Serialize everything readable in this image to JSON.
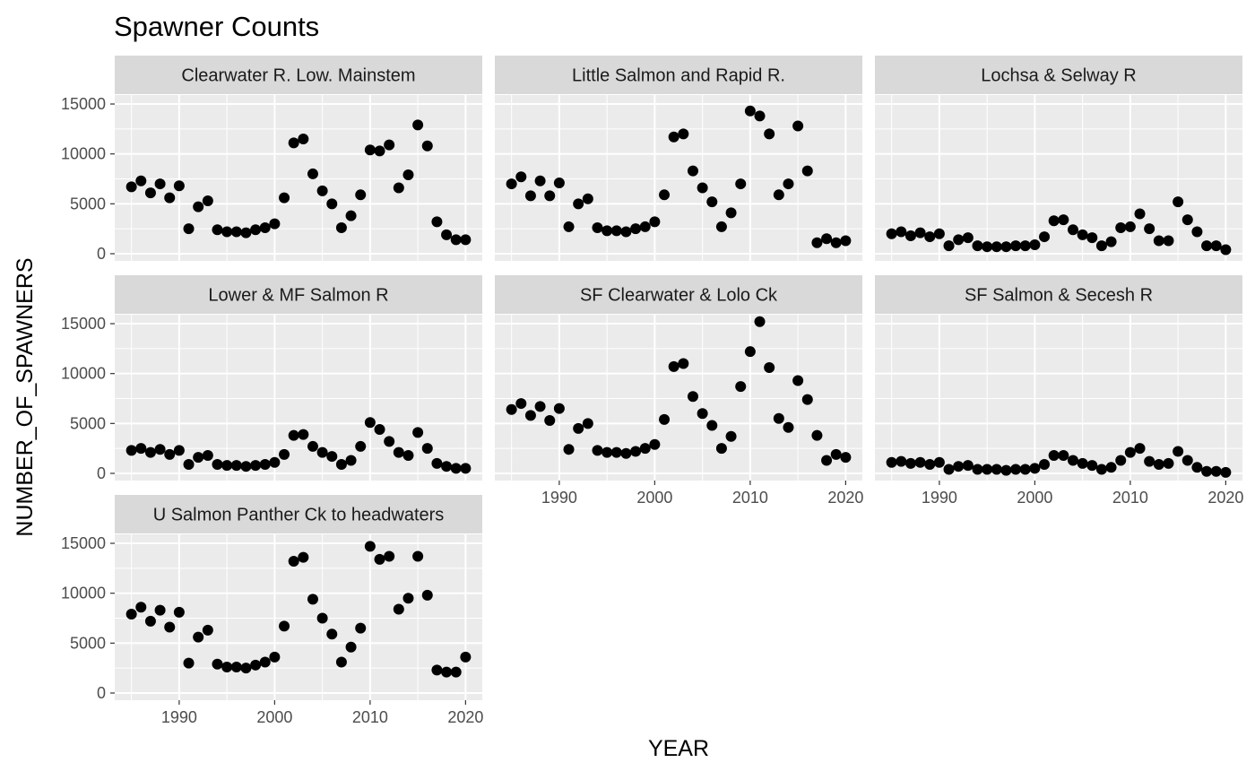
{
  "chart_data": {
    "type": "scatter",
    "title": "Spawner Counts",
    "xlabel": "YEAR",
    "ylabel": "NUMBER_OF_SPAWNERS",
    "xlim": [
      1983.25,
      2021.75
    ],
    "ylim": [
      -720,
      15900
    ],
    "x_ticks": [
      1990,
      2000,
      2010,
      2020
    ],
    "y_ticks": [
      0,
      5000,
      10000,
      15000
    ],
    "grid": true,
    "facets": [
      {
        "name": "Clearwater R. Low. Mainstem",
        "x": [
          1985,
          1986,
          1987,
          1988,
          1989,
          1990,
          1991,
          1992,
          1993,
          1994,
          1995,
          1996,
          1997,
          1998,
          1999,
          2000,
          2001,
          2002,
          2003,
          2004,
          2005,
          2006,
          2007,
          2008,
          2009,
          2010,
          2011,
          2012,
          2013,
          2014,
          2015,
          2016,
          2017,
          2018,
          2019,
          2020
        ],
        "y": [
          6700,
          7300,
          6100,
          7000,
          5600,
          6800,
          2500,
          4700,
          5300,
          2400,
          2200,
          2200,
          2100,
          2400,
          2600,
          3000,
          5600,
          11100,
          11500,
          8000,
          6300,
          5000,
          2600,
          3800,
          5900,
          10400,
          10300,
          10900,
          6600,
          7900,
          12900,
          10800,
          3200,
          1900,
          1400,
          1400
        ]
      },
      {
        "name": "Little Salmon and Rapid R.",
        "x": [
          1985,
          1986,
          1987,
          1988,
          1989,
          1990,
          1991,
          1992,
          1993,
          1994,
          1995,
          1996,
          1997,
          1998,
          1999,
          2000,
          2001,
          2002,
          2003,
          2004,
          2005,
          2006,
          2007,
          2008,
          2009,
          2010,
          2011,
          2012,
          2013,
          2014,
          2015,
          2016,
          2017,
          2018,
          2019,
          2020
        ],
        "y": [
          7000,
          7700,
          5800,
          7300,
          5800,
          7100,
          2700,
          5000,
          5500,
          2600,
          2300,
          2300,
          2200,
          2500,
          2700,
          3200,
          5900,
          11700,
          12000,
          8300,
          6600,
          5200,
          2700,
          4100,
          7000,
          14300,
          13800,
          12000,
          5900,
          7000,
          12800,
          8300,
          1100,
          1500,
          1100,
          1300
        ]
      },
      {
        "name": "Lochsa & Selway R",
        "x": [
          1985,
          1986,
          1987,
          1988,
          1989,
          1990,
          1991,
          1992,
          1993,
          1994,
          1995,
          1996,
          1997,
          1998,
          1999,
          2000,
          2001,
          2002,
          2003,
          2004,
          2005,
          2006,
          2007,
          2008,
          2009,
          2010,
          2011,
          2012,
          2013,
          2014,
          2015,
          2016,
          2017,
          2018,
          2019,
          2020
        ],
        "y": [
          2000,
          2200,
          1800,
          2100,
          1700,
          2000,
          800,
          1400,
          1600,
          800,
          700,
          700,
          700,
          800,
          800,
          900,
          1700,
          3300,
          3400,
          2400,
          1900,
          1600,
          800,
          1200,
          2600,
          2700,
          4000,
          2500,
          1300,
          1300,
          5200,
          3400,
          2200,
          800,
          800,
          400
        ]
      },
      {
        "name": "Lower & MF Salmon R",
        "x": [
          1985,
          1986,
          1987,
          1988,
          1989,
          1990,
          1991,
          1992,
          1993,
          1994,
          1995,
          1996,
          1997,
          1998,
          1999,
          2000,
          2001,
          2002,
          2003,
          2004,
          2005,
          2006,
          2007,
          2008,
          2009,
          2010,
          2011,
          2012,
          2013,
          2014,
          2015,
          2016,
          2017,
          2018,
          2019,
          2020
        ],
        "y": [
          2300,
          2500,
          2100,
          2400,
          1900,
          2300,
          900,
          1600,
          1800,
          900,
          800,
          800,
          700,
          800,
          900,
          1100,
          1900,
          3800,
          3900,
          2700,
          2100,
          1700,
          900,
          1300,
          2700,
          5100,
          4400,
          3200,
          2100,
          1800,
          4100,
          2500,
          1000,
          700,
          500,
          500
        ]
      },
      {
        "name": "SF Clearwater & Lolo Ck",
        "x": [
          1985,
          1986,
          1987,
          1988,
          1989,
          1990,
          1991,
          1992,
          1993,
          1994,
          1995,
          1996,
          1997,
          1998,
          1999,
          2000,
          2001,
          2002,
          2003,
          2004,
          2005,
          2006,
          2007,
          2008,
          2009,
          2010,
          2011,
          2012,
          2013,
          2014,
          2015,
          2016,
          2017,
          2018,
          2019,
          2020
        ],
        "y": [
          6400,
          7000,
          5800,
          6700,
          5300,
          6500,
          2400,
          4500,
          5000,
          2300,
          2100,
          2100,
          2000,
          2200,
          2500,
          2900,
          5400,
          10700,
          11000,
          7700,
          6000,
          4800,
          2500,
          3700,
          8700,
          12200,
          15200,
          10600,
          5500,
          4600,
          9300,
          7400,
          3800,
          1300,
          1900,
          1600
        ]
      },
      {
        "name": "SF Salmon & Secesh R",
        "x": [
          1985,
          1986,
          1987,
          1988,
          1989,
          1990,
          1991,
          1992,
          1993,
          1994,
          1995,
          1996,
          1997,
          1998,
          1999,
          2000,
          2001,
          2002,
          2003,
          2004,
          2005,
          2006,
          2007,
          2008,
          2009,
          2010,
          2011,
          2012,
          2013,
          2014,
          2015,
          2016,
          2017,
          2018,
          2019,
          2020
        ],
        "y": [
          1100,
          1200,
          1000,
          1100,
          900,
          1100,
          400,
          700,
          800,
          400,
          400,
          400,
          300,
          400,
          400,
          500,
          900,
          1800,
          1800,
          1300,
          1000,
          800,
          400,
          600,
          1300,
          2100,
          2500,
          1200,
          900,
          1000,
          2200,
          1300,
          600,
          200,
          200,
          100
        ]
      },
      {
        "name": "U Salmon Panther Ck to headwaters",
        "x": [
          1985,
          1986,
          1987,
          1988,
          1989,
          1990,
          1991,
          1992,
          1993,
          1994,
          1995,
          1996,
          1997,
          1998,
          1999,
          2000,
          2001,
          2002,
          2003,
          2004,
          2005,
          2006,
          2007,
          2008,
          2009,
          2010,
          2011,
          2012,
          2013,
          2014,
          2015,
          2016,
          2017,
          2018,
          2019,
          2020
        ],
        "y": [
          7900,
          8600,
          7200,
          8300,
          6600,
          8100,
          3000,
          5600,
          6300,
          2900,
          2600,
          2600,
          2500,
          2800,
          3100,
          3600,
          6700,
          13200,
          13600,
          9400,
          7500,
          5900,
          3100,
          4600,
          6500,
          14700,
          13400,
          13700,
          8400,
          9500,
          13700,
          9800,
          2300,
          2100,
          2100,
          3600
        ]
      }
    ]
  }
}
